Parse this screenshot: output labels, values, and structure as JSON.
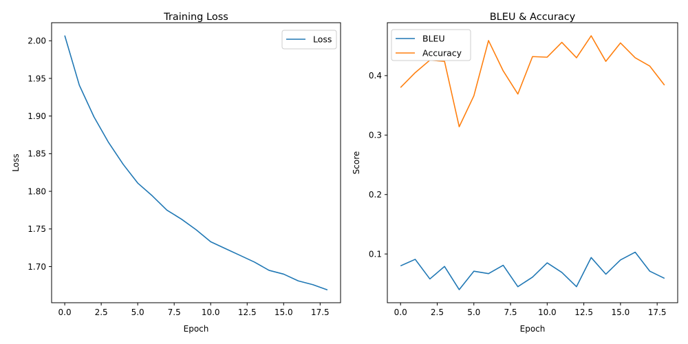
{
  "chart_data": [
    {
      "type": "line",
      "title": "Training Loss",
      "xlabel": "Epoch",
      "ylabel": "Loss",
      "xlim": [
        -0.9,
        18.9
      ],
      "ylim": [
        1.652,
        2.024
      ],
      "xticks": [
        0.0,
        2.5,
        5.0,
        7.5,
        10.0,
        12.5,
        15.0,
        17.5
      ],
      "xtick_labels": [
        "0.0",
        "2.5",
        "5.0",
        "7.5",
        "10.0",
        "12.5",
        "15.0",
        "17.5"
      ],
      "yticks": [
        1.7,
        1.75,
        1.8,
        1.85,
        1.9,
        1.95,
        2.0
      ],
      "ytick_labels": [
        "1.70",
        "1.75",
        "1.80",
        "1.85",
        "1.90",
        "1.95",
        "2.00"
      ],
      "grid": false,
      "legend": "upper-right",
      "x": [
        0,
        1,
        2,
        3,
        4,
        5,
        6,
        7,
        8,
        9,
        10,
        11,
        12,
        13,
        14,
        15,
        16,
        17,
        18
      ],
      "series": [
        {
          "name": "Loss",
          "color": "#1f77b4",
          "values": [
            2.007,
            1.941,
            1.899,
            1.865,
            1.836,
            1.811,
            1.794,
            1.775,
            1.763,
            1.749,
            1.733,
            1.724,
            1.715,
            1.706,
            1.695,
            1.69,
            1.681,
            1.676,
            1.669
          ]
        }
      ]
    },
    {
      "type": "line",
      "title": "BLEU & Accuracy",
      "xlabel": "Epoch",
      "ylabel": "Score",
      "xlim": [
        -0.9,
        18.9
      ],
      "ylim": [
        0.018,
        0.489
      ],
      "xticks": [
        0.0,
        2.5,
        5.0,
        7.5,
        10.0,
        12.5,
        15.0,
        17.5
      ],
      "xtick_labels": [
        "0.0",
        "2.5",
        "5.0",
        "7.5",
        "10.0",
        "12.5",
        "15.0",
        "17.5"
      ],
      "yticks": [
        0.1,
        0.2,
        0.3,
        0.4
      ],
      "ytick_labels": [
        "0.1",
        "0.2",
        "0.3",
        "0.4"
      ],
      "grid": false,
      "legend": "upper-left",
      "x": [
        0,
        1,
        2,
        3,
        4,
        5,
        6,
        7,
        8,
        9,
        10,
        11,
        12,
        13,
        14,
        15,
        16,
        17,
        18
      ],
      "series": [
        {
          "name": "BLEU",
          "color": "#1f77b4",
          "values": [
            0.08,
            0.091,
            0.058,
            0.079,
            0.04,
            0.071,
            0.067,
            0.081,
            0.045,
            0.061,
            0.085,
            0.069,
            0.045,
            0.094,
            0.066,
            0.09,
            0.103,
            0.071,
            0.059
          ]
        },
        {
          "name": "Accuracy",
          "color": "#ff7f0e",
          "values": [
            0.38,
            0.405,
            0.426,
            0.424,
            0.314,
            0.366,
            0.459,
            0.408,
            0.369,
            0.432,
            0.431,
            0.456,
            0.43,
            0.467,
            0.424,
            0.455,
            0.43,
            0.416,
            0.384
          ]
        }
      ]
    }
  ]
}
